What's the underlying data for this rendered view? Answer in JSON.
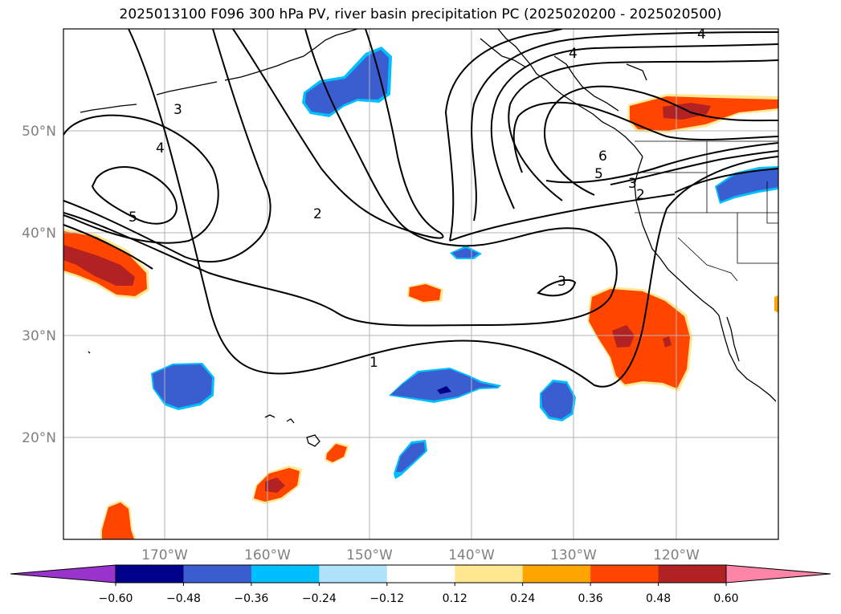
{
  "title": "2025013100 F096 300 hPa PV, river basin precipitation PC (2025020200 - 2025020500)",
  "lat_labels": [
    "50°N",
    "40°N",
    "30°N",
    "20°N"
  ],
  "lon_labels": [
    "170°W",
    "160°W",
    "150°W",
    "140°W",
    "130°W",
    "120°W"
  ],
  "contour_labels": [
    "4",
    "4",
    "3",
    "4",
    "5",
    "2",
    "6",
    "5",
    "3",
    "2",
    "3",
    "1"
  ],
  "colorbar": {
    "ticks": [
      "−0.60",
      "−0.48",
      "−0.36",
      "−0.24",
      "−0.12",
      "0.12",
      "0.24",
      "0.36",
      "0.48",
      "0.60"
    ],
    "colors": [
      "#9933cc",
      "#00008b",
      "#3a5ed0",
      "#00bfff",
      "#aee3fb",
      "#ffffff",
      "#ffe891",
      "#ffa500",
      "#ff4500",
      "#b22222",
      "#ff85a8"
    ],
    "extend": "both"
  },
  "map": {
    "lat_range": [
      10,
      60
    ],
    "lon_range": [
      -180,
      -110
    ],
    "gridlines": true,
    "field_colors": {
      "pos_light": "#ffe891",
      "pos_mid": "#ffa500",
      "pos_high": "#ff4500",
      "pos_max": "#b22222",
      "neg_light": "#aee3fb",
      "neg_mid": "#00bfff",
      "neg_high": "#3a5ed0",
      "neg_max": "#00008b"
    }
  }
}
